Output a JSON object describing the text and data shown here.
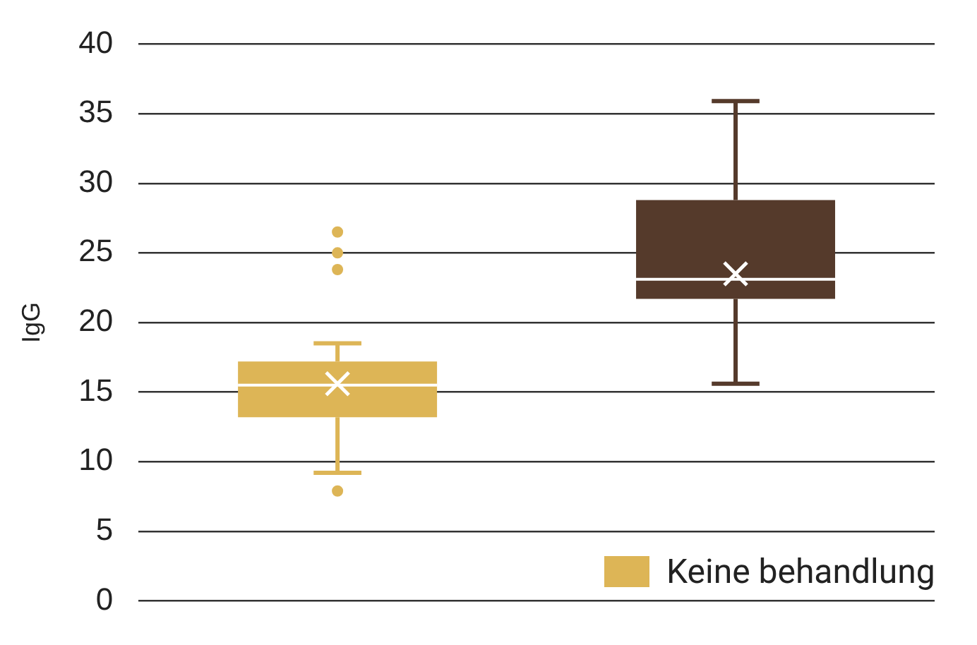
{
  "chart_data": {
    "type": "box",
    "ylabel": "IgG",
    "categories": [
      null,
      null
    ],
    "series": [
      {
        "color": "#553a2b",
        "boxes": [
          null,
          {
            "low": 15.6,
            "q1": 21.7,
            "median": 23.1,
            "q3": 28.8,
            "high": 35.9,
            "mean": 23.5
          }
        ]
      },
      {
        "name": "Keine behandlung",
        "color": "#ddb556",
        "boxes": [
          {
            "low": 9.2,
            "q1": 13.2,
            "median": 15.5,
            "q3": 17.2,
            "high": 18.5,
            "mean": 15.6,
            "outliers": [
              26.5,
              25.0,
              23.8,
              7.9
            ]
          },
          null
        ]
      }
    ],
    "ylim": [
      0,
      40
    ],
    "yticks": [
      0,
      5,
      10,
      15,
      20,
      25,
      30,
      35,
      40
    ],
    "grid": "y",
    "legend": "bottom right",
    "tick_labels": "y",
    "marker": "cross"
  }
}
